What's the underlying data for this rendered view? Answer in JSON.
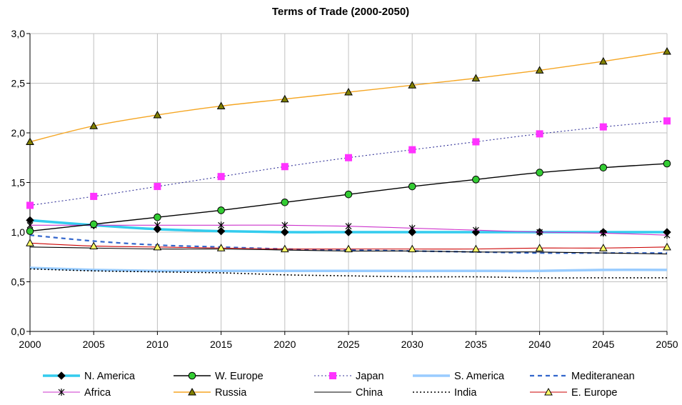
{
  "chart_data": {
    "type": "line",
    "title": "Terms of Trade (2000-2050)",
    "xlabel": "",
    "ylabel": "",
    "x": [
      2000,
      2005,
      2010,
      2015,
      2020,
      2025,
      2030,
      2035,
      2040,
      2045,
      2050
    ],
    "xticks": [
      "2000",
      "2005",
      "2010",
      "2015",
      "2020",
      "2025",
      "2030",
      "2035",
      "2040",
      "2045",
      "2050"
    ],
    "ylim": [
      0,
      3
    ],
    "yticks": [
      "0,0",
      "0,5",
      "1,0",
      "1,5",
      "2,0",
      "2,5",
      "3,0"
    ],
    "grid": true,
    "legend_position": "bottom",
    "series": [
      {
        "name": "N. America",
        "color": "#33ccee",
        "style": "solid-thick",
        "marker": "diamond",
        "values": [
          1.12,
          1.07,
          1.03,
          1.01,
          1.0,
          1.0,
          1.0,
          1.0,
          1.0,
          1.0,
          1.0
        ]
      },
      {
        "name": "W. Europe",
        "color": "#000000",
        "style": "solid",
        "marker": "circle-green",
        "values": [
          1.01,
          1.08,
          1.15,
          1.22,
          1.3,
          1.38,
          1.46,
          1.53,
          1.6,
          1.65,
          1.69
        ]
      },
      {
        "name": "Japan",
        "color": "#333399",
        "style": "dotted",
        "marker": "square-magenta",
        "values": [
          1.27,
          1.36,
          1.46,
          1.56,
          1.66,
          1.75,
          1.83,
          1.91,
          1.99,
          2.06,
          2.12
        ]
      },
      {
        "name": "S. America",
        "color": "#99ccff",
        "style": "solid-thick",
        "marker": "none",
        "values": [
          0.64,
          0.62,
          0.61,
          0.61,
          0.61,
          0.61,
          0.61,
          0.61,
          0.61,
          0.62,
          0.62
        ]
      },
      {
        "name": "Mediteranean",
        "color": "#3366cc",
        "style": "dashed",
        "marker": "none",
        "values": [
          0.97,
          0.91,
          0.87,
          0.85,
          0.83,
          0.82,
          0.81,
          0.8,
          0.79,
          0.79,
          0.79
        ]
      },
      {
        "name": "Africa",
        "color": "#cc33cc",
        "style": "solid-thin",
        "marker": "star",
        "values": [
          1.07,
          1.07,
          1.07,
          1.07,
          1.07,
          1.06,
          1.04,
          1.02,
          1.0,
          0.99,
          0.97
        ]
      },
      {
        "name": "Russia",
        "color": "#f5a623",
        "style": "solid",
        "marker": "triangle-olive",
        "values": [
          1.91,
          2.07,
          2.18,
          2.27,
          2.34,
          2.41,
          2.48,
          2.55,
          2.63,
          2.72,
          2.82
        ]
      },
      {
        "name": "China",
        "color": "#000000",
        "style": "solid-thin",
        "marker": "none",
        "values": [
          0.85,
          0.84,
          0.83,
          0.83,
          0.82,
          0.81,
          0.81,
          0.8,
          0.8,
          0.79,
          0.78
        ]
      },
      {
        "name": "India",
        "color": "#000000",
        "style": "dotted-heavy",
        "marker": "none",
        "values": [
          0.63,
          0.61,
          0.6,
          0.59,
          0.57,
          0.56,
          0.55,
          0.55,
          0.54,
          0.54,
          0.54
        ]
      },
      {
        "name": "E. Europe",
        "color": "#cc0000",
        "style": "solid-thin",
        "marker": "triangle-yellow",
        "values": [
          0.89,
          0.86,
          0.85,
          0.84,
          0.83,
          0.83,
          0.83,
          0.83,
          0.84,
          0.84,
          0.85
        ]
      }
    ]
  }
}
